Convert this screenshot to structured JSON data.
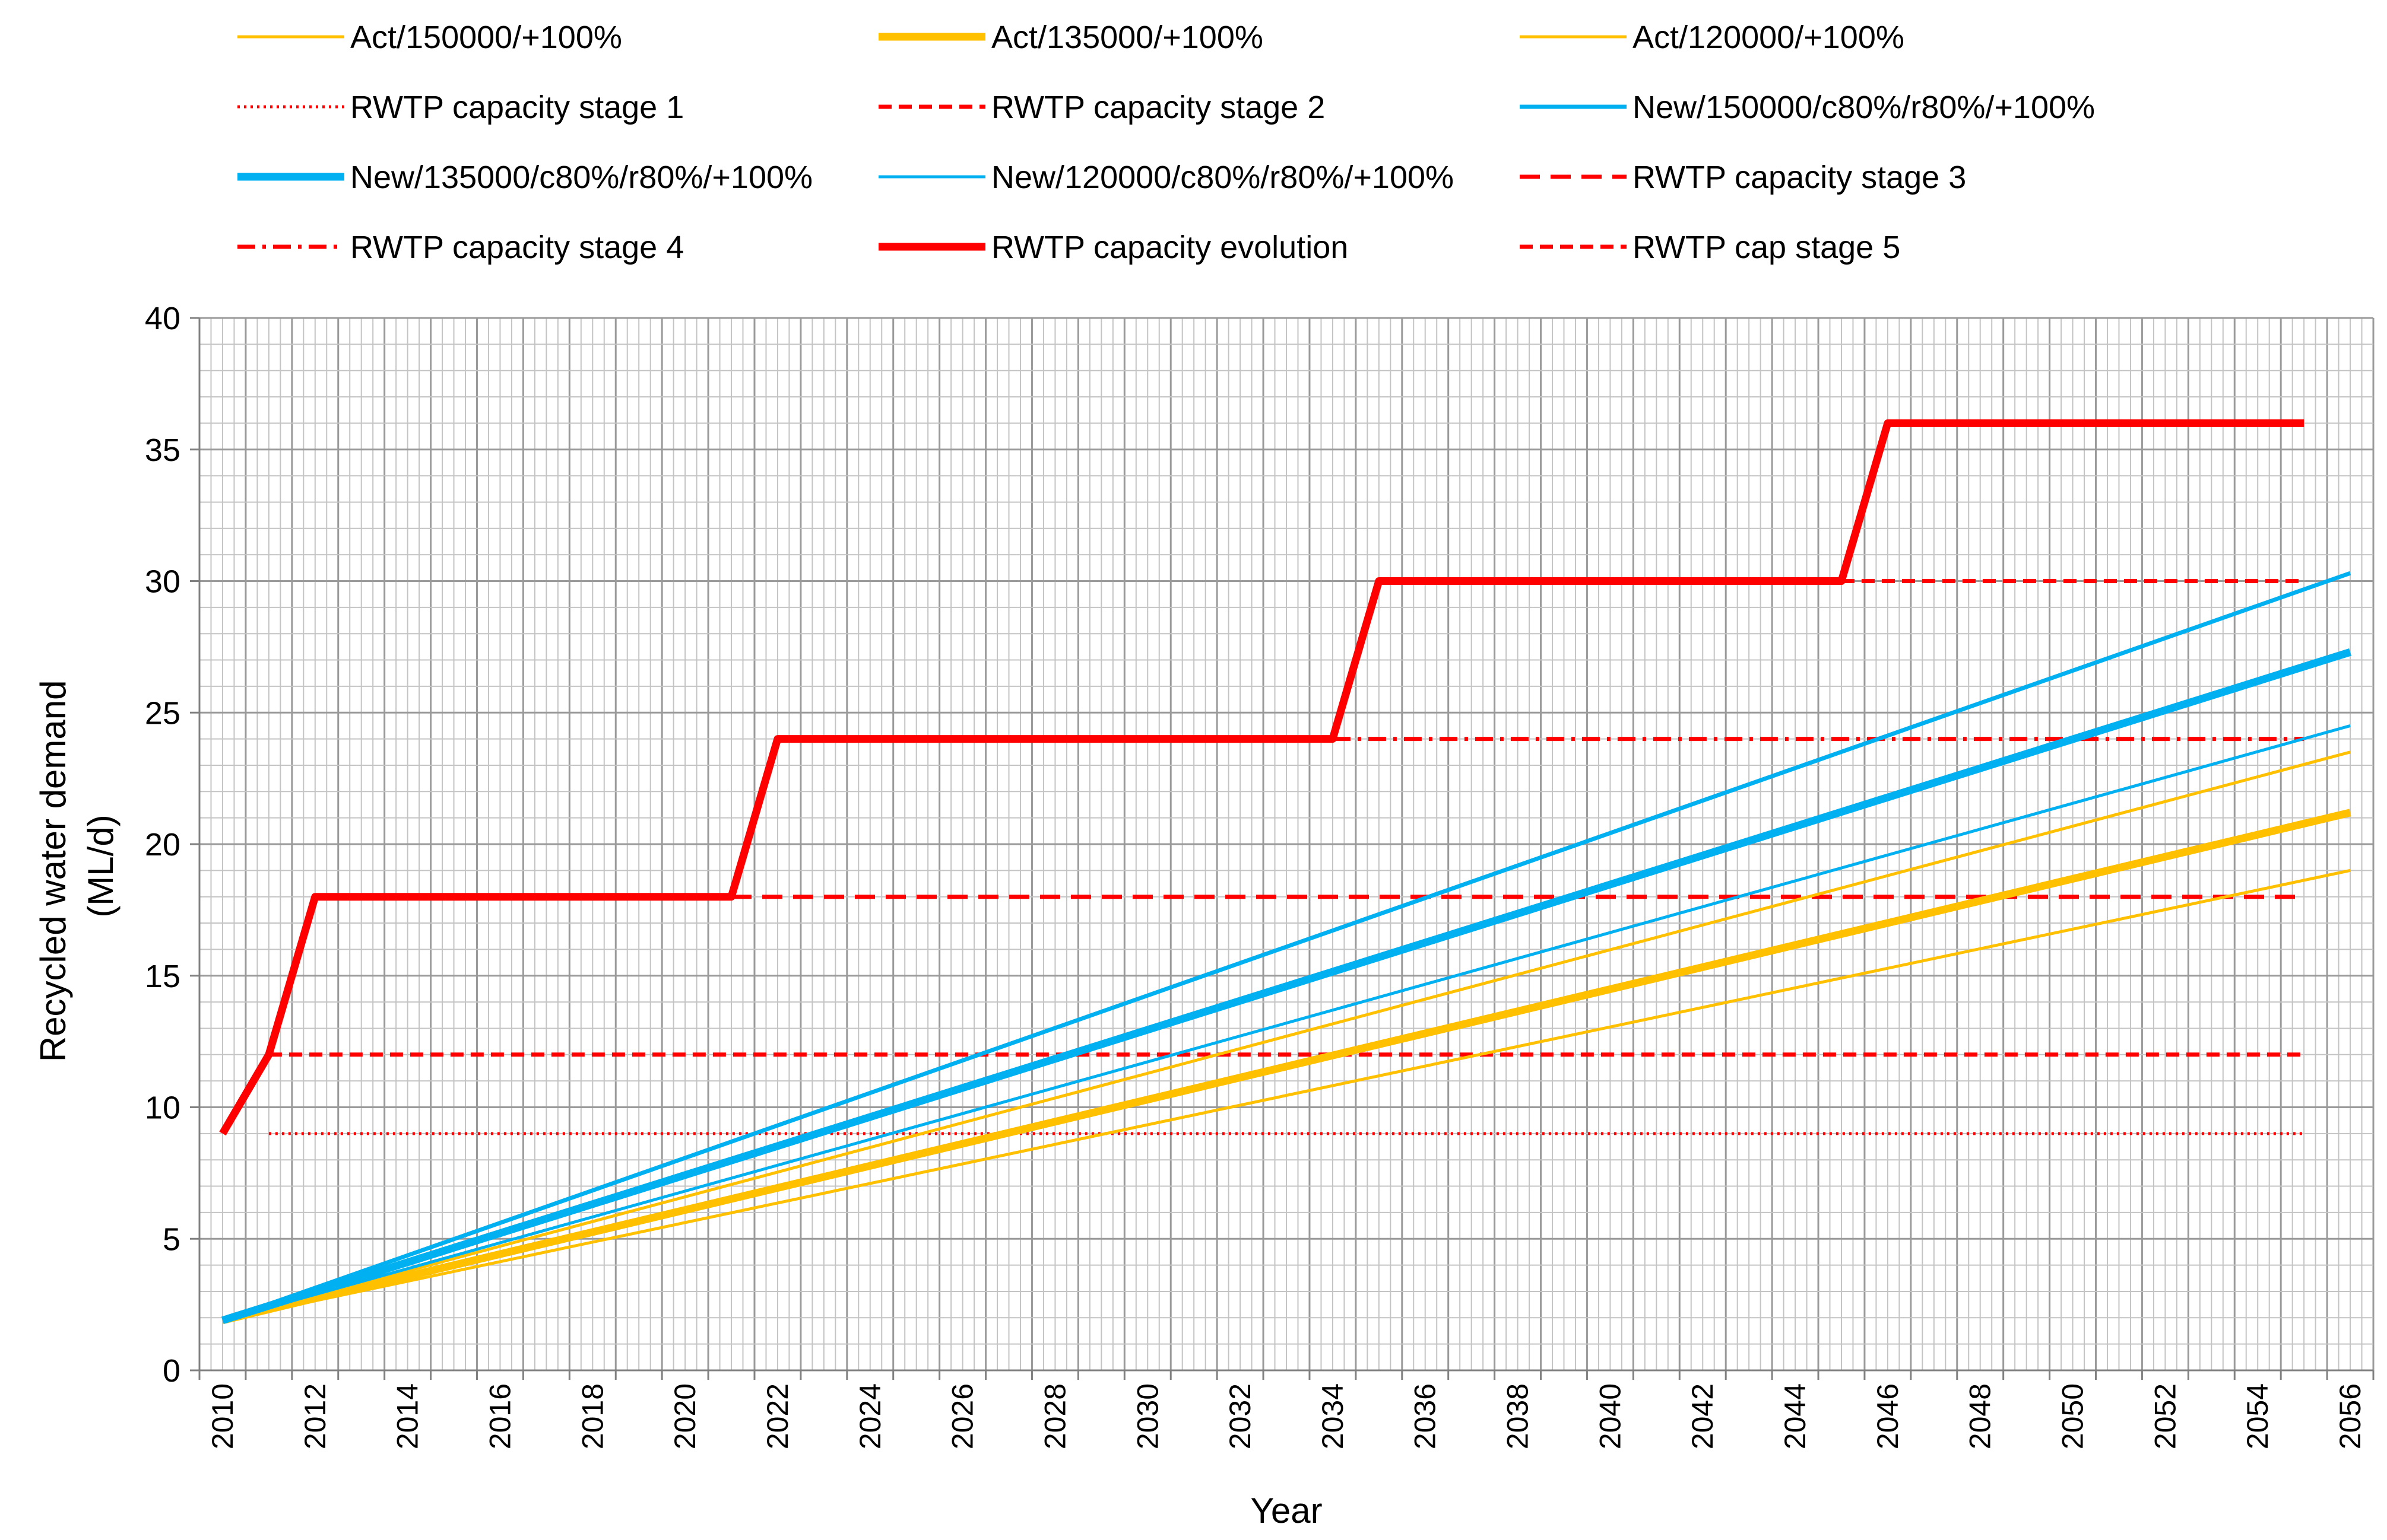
{
  "chart_data": {
    "type": "line",
    "title": "",
    "xlabel": "Year",
    "ylabel_line1": "Recycled water demand",
    "ylabel_line2": "(ML/d)",
    "xlim": [
      2009.5,
      2056.5
    ],
    "ylim": [
      0,
      40
    ],
    "x_tick_labels": [
      "2010",
      "2012",
      "2014",
      "2016",
      "2018",
      "2020",
      "2022",
      "2024",
      "2026",
      "2028",
      "2030",
      "2032",
      "2034",
      "2036",
      "2038",
      "2040",
      "2042",
      "2044",
      "2046",
      "2048",
      "2050",
      "2052",
      "2054",
      "2056"
    ],
    "y_tick_labels": [
      "0",
      "5",
      "10",
      "15",
      "20",
      "25",
      "30",
      "35",
      "40"
    ],
    "grid": true,
    "legend_position": "top",
    "series": [
      {
        "name": "Act/150000/+100%",
        "color": "#FFC000",
        "width": "thin",
        "dash": "solid",
        "x": [
          2010,
          2056
        ],
        "values": [
          1.9,
          23.5
        ]
      },
      {
        "name": "Act/135000/+100%",
        "color": "#FFC000",
        "width": "thick",
        "dash": "solid",
        "x": [
          2010,
          2056
        ],
        "values": [
          1.9,
          21.2
        ]
      },
      {
        "name": "Act/120000/+100%",
        "color": "#FFC000",
        "width": "thin",
        "dash": "solid",
        "x": [
          2010,
          2056
        ],
        "values": [
          1.9,
          19.0
        ]
      },
      {
        "name": "RWTP capacity  stage  1",
        "color": "#FF0000",
        "width": "thin",
        "dash": "dotted",
        "x": [
          2011,
          2055
        ],
        "values": [
          9,
          9
        ]
      },
      {
        "name": "RWTP capacity  stage  2",
        "color": "#FF0000",
        "width": "medium",
        "dash": "dashed",
        "x": [
          2011,
          2055
        ],
        "values": [
          12,
          12
        ]
      },
      {
        "name": "New/150000/c80%/r80%/+100%",
        "color": "#00B0F0",
        "width": "medium",
        "dash": "solid",
        "x": [
          2010,
          2056
        ],
        "values": [
          1.9,
          30.3
        ]
      },
      {
        "name": "New/135000/c80%/r80%/+100%",
        "color": "#00B0F0",
        "width": "thick",
        "dash": "solid",
        "x": [
          2010,
          2056
        ],
        "values": [
          1.9,
          27.3
        ]
      },
      {
        "name": "New/120000/c80%/r80%/+100%",
        "color": "#00B0F0",
        "width": "thin",
        "dash": "solid",
        "x": [
          2010,
          2056
        ],
        "values": [
          1.9,
          24.5
        ]
      },
      {
        "name": "RWTP capacity  stage  3",
        "color": "#FF0000",
        "width": "medium",
        "dash": "longdash",
        "x": [
          2021,
          2055
        ],
        "values": [
          18,
          18
        ]
      },
      {
        "name": "RWTP capacity  stage  4",
        "color": "#FF0000",
        "width": "medium",
        "dash": "dashdot",
        "x": [
          2034,
          2055
        ],
        "values": [
          24,
          24
        ]
      },
      {
        "name": "RWTP capacity  evolution",
        "color": "#FF0000",
        "width": "thick",
        "dash": "solid",
        "x": [
          2010,
          2011,
          2012,
          2021,
          2022,
          2034,
          2035,
          2045,
          2046,
          2055
        ],
        "values": [
          9,
          12,
          18,
          18,
          24,
          24,
          30,
          30,
          36,
          36
        ]
      },
      {
        "name": "RWTP cap  stage  5",
        "color": "#FF0000",
        "width": "medium",
        "dash": "dashed",
        "x": [
          2045,
          2055
        ],
        "values": [
          30,
          30
        ]
      }
    ]
  }
}
